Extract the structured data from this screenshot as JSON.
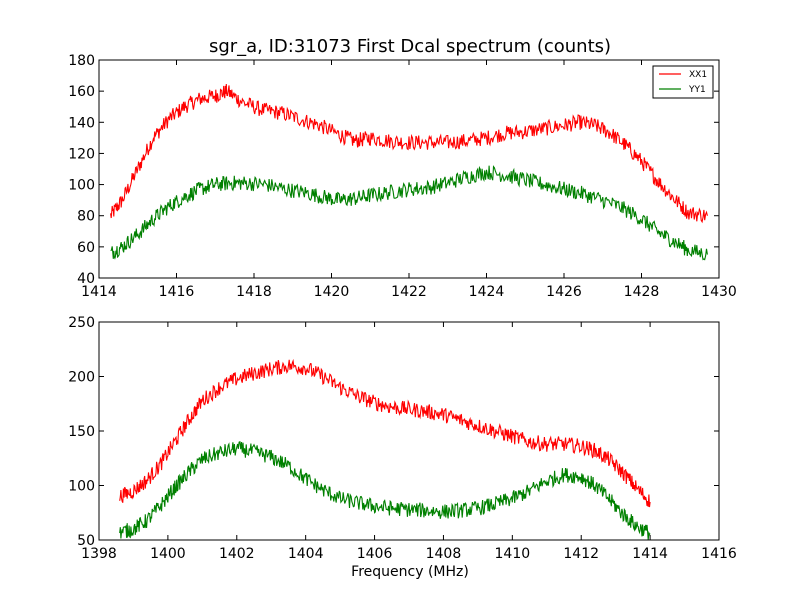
{
  "chart_data": [
    {
      "type": "line",
      "title": "sgr_a, ID:31073 First Dcal spectrum (counts)",
      "xlabel": "",
      "ylabel": "",
      "xlim": [
        1414,
        1430
      ],
      "ylim": [
        40,
        180
      ],
      "xticks": [
        "1414",
        "1416",
        "1418",
        "1420",
        "1422",
        "1424",
        "1426",
        "1428",
        "1430"
      ],
      "yticks": [
        "40",
        "60",
        "80",
        "100",
        "120",
        "140",
        "160",
        "180"
      ],
      "legend": "top-right",
      "grid": false,
      "series": [
        {
          "name": "XX1",
          "color": "#ff0000",
          "x": [
            1414.3,
            1414.6,
            1415.0,
            1415.4,
            1415.8,
            1416.2,
            1416.6,
            1417.0,
            1417.3,
            1417.7,
            1418.2,
            1418.7,
            1419.2,
            1419.7,
            1420.2,
            1420.6,
            1421.0,
            1421.5,
            1422.0,
            1422.5,
            1423.0,
            1423.5,
            1424.0,
            1424.5,
            1425.0,
            1425.5,
            1426.0,
            1426.4,
            1426.8,
            1427.2,
            1427.6,
            1428.0,
            1428.4,
            1428.8,
            1429.2,
            1429.7
          ],
          "y": [
            80,
            90,
            110,
            130,
            142,
            150,
            155,
            157,
            160,
            153,
            148,
            146,
            142,
            138,
            132,
            128,
            130,
            128,
            127,
            127,
            127,
            128,
            130,
            133,
            134,
            136,
            138,
            140,
            138,
            133,
            125,
            115,
            103,
            92,
            82,
            80
          ]
        },
        {
          "name": "YY1",
          "color": "#008000",
          "x": [
            1414.3,
            1414.6,
            1415.0,
            1415.4,
            1415.8,
            1416.2,
            1416.6,
            1417.0,
            1417.4,
            1417.8,
            1418.3,
            1418.8,
            1419.3,
            1419.8,
            1420.2,
            1420.6,
            1421.0,
            1421.5,
            1422.0,
            1422.5,
            1423.0,
            1423.5,
            1424.0,
            1424.5,
            1425.0,
            1425.5,
            1426.0,
            1426.5,
            1427.0,
            1427.5,
            1428.0,
            1428.4,
            1428.8,
            1429.2,
            1429.7
          ],
          "y": [
            56,
            60,
            68,
            78,
            86,
            92,
            97,
            100,
            101,
            101,
            100,
            97,
            95,
            92,
            90,
            91,
            93,
            95,
            97,
            98,
            101,
            105,
            108,
            106,
            103,
            100,
            97,
            94,
            90,
            85,
            78,
            70,
            64,
            58,
            55
          ]
        }
      ]
    },
    {
      "type": "line",
      "title": "",
      "xlabel": "Frequency (MHz)",
      "ylabel": "",
      "xlim": [
        1398,
        1416
      ],
      "ylim": [
        50,
        250
      ],
      "xticks": [
        "1398",
        "1400",
        "1402",
        "1404",
        "1406",
        "1408",
        "1410",
        "1412",
        "1414",
        "1416"
      ],
      "yticks": [
        "50",
        "100",
        "150",
        "200",
        "250"
      ],
      "grid": false,
      "series": [
        {
          "name": "XX1",
          "color": "#ff0000",
          "x": [
            1398.6,
            1399.0,
            1399.4,
            1399.8,
            1400.2,
            1400.6,
            1401.0,
            1401.5,
            1402.0,
            1402.5,
            1403.0,
            1403.5,
            1404.0,
            1404.5,
            1405.0,
            1405.5,
            1406.0,
            1406.5,
            1407.0,
            1407.5,
            1408.0,
            1408.5,
            1409.0,
            1409.5,
            1410.0,
            1410.5,
            1411.0,
            1411.5,
            1412.0,
            1412.4,
            1412.8,
            1413.2,
            1413.6,
            1414.0
          ],
          "y": [
            90,
            95,
            105,
            120,
            140,
            160,
            178,
            190,
            198,
            203,
            207,
            210,
            208,
            200,
            190,
            182,
            176,
            172,
            170,
            168,
            165,
            160,
            155,
            150,
            145,
            140,
            138,
            138,
            136,
            132,
            124,
            112,
            98,
            85
          ]
        },
        {
          "name": "YY1",
          "color": "#008000",
          "x": [
            1398.6,
            1399.0,
            1399.4,
            1399.8,
            1400.2,
            1400.6,
            1401.0,
            1401.5,
            1402.0,
            1402.5,
            1403.0,
            1403.5,
            1404.0,
            1404.5,
            1405.0,
            1405.5,
            1406.0,
            1406.5,
            1407.0,
            1407.5,
            1408.0,
            1408.5,
            1409.0,
            1409.5,
            1410.0,
            1410.5,
            1411.0,
            1411.5,
            1412.0,
            1412.4,
            1412.8,
            1413.2,
            1413.6,
            1414.0
          ],
          "y": [
            57,
            60,
            68,
            82,
            98,
            112,
            124,
            130,
            134,
            131,
            126,
            118,
            106,
            96,
            88,
            84,
            81,
            79,
            78,
            77,
            76,
            77,
            79,
            83,
            88,
            95,
            104,
            110,
            108,
            100,
            88,
            74,
            63,
            56
          ]
        }
      ]
    }
  ]
}
